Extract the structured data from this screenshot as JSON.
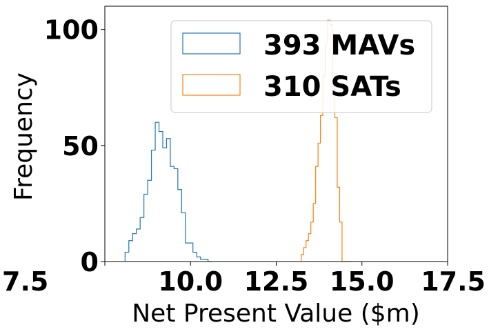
{
  "chart_data": {
    "type": "histogram",
    "title": "",
    "xlabel": "Net Present Value ($m)",
    "ylabel": "Frequency",
    "xlim": [
      7.5,
      17.5
    ],
    "ylim": [
      0,
      110
    ],
    "x_ticks": [
      "7.5",
      "10.0",
      "12.5",
      "15.0",
      "17.5"
    ],
    "y_ticks": [
      "0",
      "50",
      "100"
    ],
    "x_tick_values": [
      7.5,
      10.0,
      12.5,
      15.0,
      17.5
    ],
    "y_tick_values": [
      0,
      50,
      100
    ],
    "grid": false,
    "legend_position": "top-right",
    "series": [
      {
        "name": "393 MAVs",
        "color": "#1f77b4",
        "bin_edges": [
          8.09,
          8.2,
          8.31,
          8.42,
          8.53,
          8.64,
          8.75,
          8.86,
          8.97,
          9.08,
          9.19,
          9.3,
          9.41,
          9.52,
          9.63,
          9.74,
          9.85,
          9.96,
          10.07,
          10.18,
          10.29,
          10.4,
          10.51,
          10.62
        ],
        "counts": [
          4,
          9,
          12,
          14,
          19,
          29,
          35,
          48,
          60,
          56,
          49,
          53,
          41,
          40,
          31,
          21,
          8,
          8,
          4,
          2,
          1,
          1,
          0
        ]
      },
      {
        "name": "310 SATs",
        "color": "#ff7f0e",
        "bin_edges": [
          13.23,
          13.3,
          13.37,
          13.44,
          13.51,
          13.58,
          13.65,
          13.72,
          13.79,
          13.86,
          13.93,
          14.0,
          14.07,
          14.14,
          14.21,
          14.28,
          14.35,
          14.42,
          14.49,
          14.56,
          14.63,
          14.7
        ],
        "counts": [
          3,
          6,
          9,
          12,
          17,
          25,
          41,
          51,
          63,
          80,
          94,
          104,
          102,
          78,
          62,
          32,
          17,
          0,
          0,
          0,
          0
        ]
      }
    ]
  }
}
